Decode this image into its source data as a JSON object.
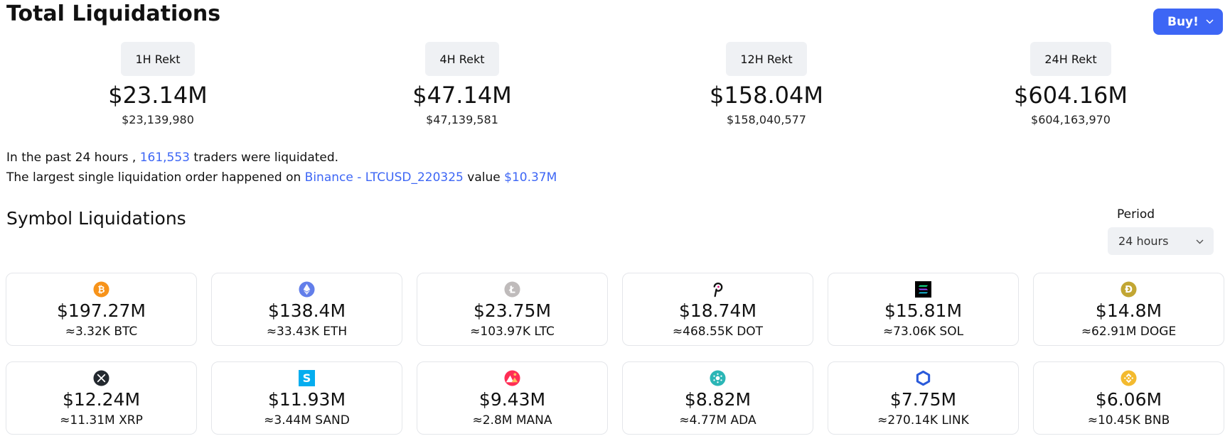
{
  "header": {
    "title": "Total Liquidations",
    "buy_label": "Buy!"
  },
  "rekt": [
    {
      "label": "1H Rekt",
      "value": "$23.14M",
      "exact": "$23,139,980"
    },
    {
      "label": "4H Rekt",
      "value": "$47.14M",
      "exact": "$47,139,581"
    },
    {
      "label": "12H Rekt",
      "value": "$158.04M",
      "exact": "$158,040,577"
    },
    {
      "label": "24H Rekt",
      "value": "$604.16M",
      "exact": "$604,163,970"
    }
  ],
  "summary": {
    "line1_prefix": "In the past 24 hours ,",
    "traders_count": "161,553",
    "line1_suffix": "traders were liquidated.",
    "line2_prefix": "The largest single liquidation order happened on",
    "largest_order_link": "Binance - LTCUSD_220325",
    "line2_value_label": "value",
    "largest_order_value": "$10.37M"
  },
  "symbols": {
    "title": "Symbol Liquidations",
    "period_label": "Period",
    "period_value": "24 hours",
    "cards": [
      {
        "icon": "bitcoin-icon",
        "color": "#f7931a",
        "usd": "$197.27M",
        "amount": "≈3.32K BTC"
      },
      {
        "icon": "ethereum-icon",
        "color": "#627eea",
        "usd": "$138.4M",
        "amount": "≈33.43K ETH"
      },
      {
        "icon": "litecoin-icon",
        "color": "#bfbbbb",
        "usd": "$23.75M",
        "amount": "≈103.97K LTC"
      },
      {
        "icon": "polkadot-icon",
        "color": "#e6007a",
        "usd": "$18.74M",
        "amount": "≈468.55K DOT"
      },
      {
        "icon": "solana-icon",
        "color": "#000000",
        "usd": "$15.81M",
        "amount": "≈73.06K SOL"
      },
      {
        "icon": "dogecoin-icon",
        "color": "#c2a633",
        "usd": "$14.8M",
        "amount": "≈62.91M DOGE"
      },
      {
        "icon": "xrp-icon",
        "color": "#23292f",
        "usd": "$12.24M",
        "amount": "≈11.31M XRP"
      },
      {
        "icon": "sandbox-icon",
        "color": "#04adef",
        "usd": "$11.93M",
        "amount": "≈3.44M SAND"
      },
      {
        "icon": "decentraland-icon",
        "color": "#ff2d55",
        "usd": "$9.43M",
        "amount": "≈2.8M MANA"
      },
      {
        "icon": "cardano-icon",
        "color": "#2bb6b6",
        "usd": "$8.82M",
        "amount": "≈4.77M ADA"
      },
      {
        "icon": "chainlink-icon",
        "color": "#2a5ada",
        "usd": "$7.75M",
        "amount": "≈270.14K LINK"
      },
      {
        "icon": "bnb-icon",
        "color": "#f3ba2f",
        "usd": "$6.06M",
        "amount": "≈10.45K BNB"
      }
    ]
  }
}
